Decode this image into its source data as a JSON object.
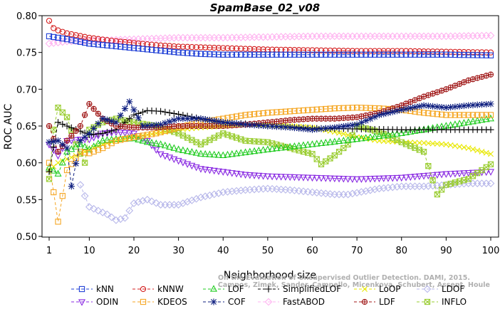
{
  "chart_data": {
    "type": "line",
    "title": "SpamBase_02_v08",
    "xlabel": "Neighborhood size",
    "ylabel": "ROC AUC",
    "xlim": [
      1,
      100
    ],
    "ylim": [
      0.5,
      0.8
    ],
    "xticks": [
      1,
      10,
      20,
      30,
      40,
      50,
      60,
      70,
      80,
      90,
      100
    ],
    "yticks": [
      0.5,
      0.55,
      0.6,
      0.65,
      0.7,
      0.75,
      0.8
    ],
    "ytick_labels": [
      "0.50",
      "0.55",
      "0.60",
      "0.65",
      "0.70",
      "0.75",
      "0.80"
    ],
    "grid": false,
    "legend_position": "bottom",
    "watermark_lines": [
      "Campos, Zimek, Sander, Campello, Micenkova, Schubert, Assent, Houle",
      "On the Evaluation of Unsupervised Outlier Detection. DAMI, 2015."
    ],
    "series": [
      {
        "name": "kNN",
        "color": "#1f3fd6",
        "marker": "square",
        "points": [
          [
            1,
            0.772
          ],
          [
            5,
            0.768
          ],
          [
            10,
            0.762
          ],
          [
            15,
            0.759
          ],
          [
            20,
            0.756
          ],
          [
            25,
            0.753
          ],
          [
            30,
            0.75
          ],
          [
            35,
            0.748
          ],
          [
            40,
            0.747
          ],
          [
            50,
            0.747
          ],
          [
            60,
            0.747
          ],
          [
            70,
            0.747
          ],
          [
            80,
            0.747
          ],
          [
            90,
            0.747
          ],
          [
            100,
            0.746
          ]
        ]
      },
      {
        "name": "kNNW",
        "color": "#d42020",
        "marker": "circle",
        "points": [
          [
            1,
            0.793
          ],
          [
            2,
            0.783
          ],
          [
            3,
            0.78
          ],
          [
            5,
            0.776
          ],
          [
            10,
            0.77
          ],
          [
            15,
            0.766
          ],
          [
            20,
            0.763
          ],
          [
            25,
            0.76
          ],
          [
            30,
            0.758
          ],
          [
            40,
            0.756
          ],
          [
            50,
            0.754
          ],
          [
            60,
            0.753
          ],
          [
            70,
            0.752
          ],
          [
            80,
            0.752
          ],
          [
            90,
            0.751
          ],
          [
            100,
            0.75
          ]
        ]
      },
      {
        "name": "LOF",
        "color": "#22cc22",
        "marker": "triangle",
        "points": [
          [
            1,
            0.593
          ],
          [
            3,
            0.585
          ],
          [
            5,
            0.615
          ],
          [
            8,
            0.625
          ],
          [
            10,
            0.618
          ],
          [
            13,
            0.63
          ],
          [
            16,
            0.632
          ],
          [
            20,
            0.633
          ],
          [
            23,
            0.628
          ],
          [
            26,
            0.625
          ],
          [
            30,
            0.618
          ],
          [
            35,
            0.612
          ],
          [
            40,
            0.61
          ],
          [
            45,
            0.614
          ],
          [
            50,
            0.618
          ],
          [
            60,
            0.625
          ],
          [
            70,
            0.632
          ],
          [
            80,
            0.64
          ],
          [
            90,
            0.65
          ],
          [
            100,
            0.66
          ]
        ]
      },
      {
        "name": "SimplifiedLOF",
        "color": "#000000",
        "marker": "plus",
        "points": [
          [
            1,
            0.588
          ],
          [
            3,
            0.655
          ],
          [
            5,
            0.65
          ],
          [
            8,
            0.643
          ],
          [
            10,
            0.638
          ],
          [
            13,
            0.64
          ],
          [
            16,
            0.645
          ],
          [
            20,
            0.665
          ],
          [
            23,
            0.671
          ],
          [
            26,
            0.67
          ],
          [
            30,
            0.666
          ],
          [
            35,
            0.66
          ],
          [
            40,
            0.655
          ],
          [
            45,
            0.653
          ],
          [
            50,
            0.65
          ],
          [
            60,
            0.647
          ],
          [
            70,
            0.646
          ],
          [
            80,
            0.645
          ],
          [
            90,
            0.645
          ],
          [
            100,
            0.645
          ]
        ]
      },
      {
        "name": "LoOP",
        "color": "#e8e800",
        "marker": "x",
        "points": [
          [
            1,
            0.59
          ],
          [
            3,
            0.6
          ],
          [
            5,
            0.605
          ],
          [
            8,
            0.612
          ],
          [
            10,
            0.618
          ],
          [
            13,
            0.625
          ],
          [
            16,
            0.63
          ],
          [
            20,
            0.635
          ],
          [
            25,
            0.64
          ],
          [
            30,
            0.645
          ],
          [
            35,
            0.648
          ],
          [
            40,
            0.65
          ],
          [
            45,
            0.652
          ],
          [
            50,
            0.652
          ],
          [
            55,
            0.65
          ],
          [
            60,
            0.648
          ],
          [
            65,
            0.642
          ],
          [
            70,
            0.635
          ],
          [
            75,
            0.63
          ],
          [
            80,
            0.628
          ],
          [
            85,
            0.627
          ],
          [
            90,
            0.625
          ],
          [
            95,
            0.62
          ],
          [
            100,
            0.612
          ]
        ]
      },
      {
        "name": "LDOF",
        "color": "#b8b8ea",
        "marker": "diamond",
        "points": [
          [
            8,
            0.57
          ],
          [
            10,
            0.54
          ],
          [
            12,
            0.535
          ],
          [
            14,
            0.53
          ],
          [
            16,
            0.522
          ],
          [
            18,
            0.525
          ],
          [
            20,
            0.545
          ],
          [
            23,
            0.55
          ],
          [
            26,
            0.543
          ],
          [
            30,
            0.543
          ],
          [
            35,
            0.553
          ],
          [
            40,
            0.56
          ],
          [
            45,
            0.563
          ],
          [
            50,
            0.565
          ],
          [
            55,
            0.563
          ],
          [
            60,
            0.56
          ],
          [
            65,
            0.557
          ],
          [
            68,
            0.557
          ],
          [
            75,
            0.565
          ],
          [
            80,
            0.568
          ],
          [
            85,
            0.568
          ],
          [
            90,
            0.57
          ],
          [
            95,
            0.572
          ],
          [
            100,
            0.572
          ]
        ]
      },
      {
        "name": "ODIN",
        "color": "#8a2be2",
        "marker": "triangle-down",
        "points": [
          [
            1,
            0.625
          ],
          [
            3,
            0.61
          ],
          [
            5,
            0.63
          ],
          [
            8,
            0.632
          ],
          [
            10,
            0.632
          ],
          [
            13,
            0.64
          ],
          [
            16,
            0.642
          ],
          [
            20,
            0.64
          ],
          [
            23,
            0.63
          ],
          [
            26,
            0.612
          ],
          [
            30,
            0.603
          ],
          [
            35,
            0.592
          ],
          [
            40,
            0.588
          ],
          [
            45,
            0.584
          ],
          [
            50,
            0.582
          ],
          [
            60,
            0.58
          ],
          [
            70,
            0.578
          ],
          [
            80,
            0.58
          ],
          [
            90,
            0.585
          ],
          [
            100,
            0.588
          ]
        ]
      },
      {
        "name": "KDEOS",
        "color": "#f5a623",
        "marker": "square",
        "points": [
          [
            1,
            0.6
          ],
          [
            3,
            0.52
          ],
          [
            5,
            0.59
          ],
          [
            8,
            0.615
          ],
          [
            10,
            0.613
          ],
          [
            13,
            0.62
          ],
          [
            16,
            0.63
          ],
          [
            20,
            0.635
          ],
          [
            25,
            0.64
          ],
          [
            30,
            0.648
          ],
          [
            35,
            0.655
          ],
          [
            40,
            0.66
          ],
          [
            45,
            0.665
          ],
          [
            50,
            0.668
          ],
          [
            55,
            0.67
          ],
          [
            60,
            0.672
          ],
          [
            65,
            0.674
          ],
          [
            70,
            0.675
          ],
          [
            75,
            0.674
          ],
          [
            80,
            0.672
          ],
          [
            85,
            0.668
          ],
          [
            90,
            0.665
          ],
          [
            95,
            0.665
          ],
          [
            100,
            0.665
          ]
        ]
      },
      {
        "name": "COF",
        "color": "#102080",
        "marker": "star",
        "points": [
          [
            1,
            0.628
          ],
          [
            3,
            0.63
          ],
          [
            5,
            0.62
          ],
          [
            6,
            0.568
          ],
          [
            8,
            0.63
          ],
          [
            10,
            0.64
          ],
          [
            13,
            0.66
          ],
          [
            16,
            0.655
          ],
          [
            19,
            0.683
          ],
          [
            22,
            0.65
          ],
          [
            26,
            0.652
          ],
          [
            30,
            0.66
          ],
          [
            35,
            0.66
          ],
          [
            40,
            0.655
          ],
          [
            45,
            0.652
          ],
          [
            50,
            0.65
          ],
          [
            55,
            0.648
          ],
          [
            60,
            0.645
          ],
          [
            65,
            0.648
          ],
          [
            70,
            0.652
          ],
          [
            75,
            0.665
          ],
          [
            80,
            0.672
          ],
          [
            85,
            0.678
          ],
          [
            90,
            0.675
          ],
          [
            95,
            0.678
          ],
          [
            100,
            0.68
          ]
        ]
      },
      {
        "name": "FastABOD",
        "color": "#ffb3f0",
        "marker": "diamond",
        "points": [
          [
            1,
            0.762
          ],
          [
            5,
            0.765
          ],
          [
            10,
            0.766
          ],
          [
            20,
            0.768
          ],
          [
            30,
            0.77
          ],
          [
            40,
            0.77
          ],
          [
            50,
            0.771
          ],
          [
            60,
            0.772
          ],
          [
            70,
            0.772
          ],
          [
            80,
            0.772
          ],
          [
            90,
            0.772
          ],
          [
            100,
            0.773
          ]
        ]
      },
      {
        "name": "LDF",
        "color": "#a01818",
        "marker": "circle-plus",
        "points": [
          [
            1,
            0.65
          ],
          [
            3,
            0.615
          ],
          [
            5,
            0.63
          ],
          [
            8,
            0.65
          ],
          [
            10,
            0.68
          ],
          [
            13,
            0.66
          ],
          [
            16,
            0.65
          ],
          [
            20,
            0.648
          ],
          [
            25,
            0.648
          ],
          [
            30,
            0.65
          ],
          [
            35,
            0.65
          ],
          [
            40,
            0.65
          ],
          [
            45,
            0.652
          ],
          [
            50,
            0.655
          ],
          [
            55,
            0.658
          ],
          [
            60,
            0.66
          ],
          [
            65,
            0.66
          ],
          [
            70,
            0.662
          ],
          [
            75,
            0.668
          ],
          [
            80,
            0.678
          ],
          [
            85,
            0.69
          ],
          [
            90,
            0.7
          ],
          [
            95,
            0.712
          ],
          [
            100,
            0.72
          ]
        ]
      },
      {
        "name": "INFLO",
        "color": "#9acd32",
        "marker": "square-x",
        "points": [
          [
            1,
            0.578
          ],
          [
            2,
            0.645
          ],
          [
            3,
            0.675
          ],
          [
            5,
            0.662
          ],
          [
            7,
            0.625
          ],
          [
            9,
            0.6
          ],
          [
            10,
            0.645
          ],
          [
            13,
            0.655
          ],
          [
            16,
            0.66
          ],
          [
            20,
            0.655
          ],
          [
            25,
            0.65
          ],
          [
            30,
            0.64
          ],
          [
            35,
            0.625
          ],
          [
            40,
            0.64
          ],
          [
            45,
            0.63
          ],
          [
            50,
            0.628
          ],
          [
            55,
            0.62
          ],
          [
            60,
            0.612
          ],
          [
            62,
            0.598
          ],
          [
            65,
            0.61
          ],
          [
            68,
            0.625
          ],
          [
            70,
            0.65
          ],
          [
            75,
            0.642
          ],
          [
            80,
            0.628
          ],
          [
            85,
            0.615
          ],
          [
            88,
            0.557
          ],
          [
            90,
            0.57
          ],
          [
            95,
            0.578
          ],
          [
            100,
            0.598
          ]
        ]
      }
    ]
  }
}
